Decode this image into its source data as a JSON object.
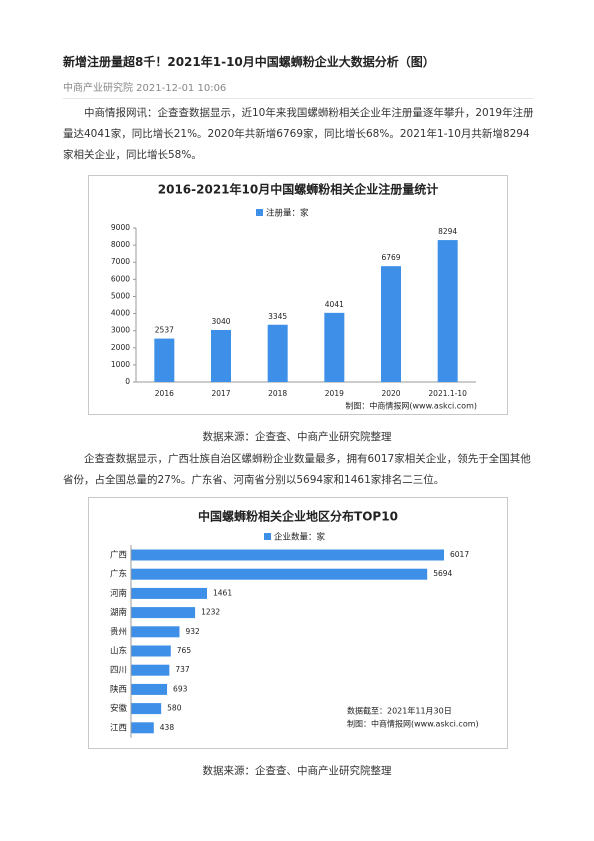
{
  "article": {
    "title": "新增注册量超8千！2021年1-10月中国螺蛳粉企业大数据分析（图）",
    "meta": "中商产业研究院 2021-12-01 10:06",
    "paragraphs": [
      "中商情报网讯：企查查数据显示，近10年来我国螺蛳粉相关企业年注册量逐年攀升，2019年注册量达4041家，同比增长21%。2020年共新增6769家，同比增长68%。2021年1-10月共新增8294家相关企业，同比增长58%。",
      "企查查数据显示，广西壮族自治区螺蛳粉企业数量最多，拥有6017家相关企业，领先于全国其他省份，占全国总量的27%。广东省、河南省分别以5694家和1461家排名二三位。"
    ],
    "captions": [
      "数据来源：企查查、中商产业研究院整理",
      "数据来源：企查查、中商产业研究院整理"
    ]
  },
  "chart_data": [
    {
      "type": "bar",
      "title": "2016-2021年10月中国螺蛳粉相关企业注册量统计",
      "categories": [
        "2016",
        "2017",
        "2018",
        "2019",
        "2020",
        "2021.1-10"
      ],
      "series": [
        {
          "name": "注册量：家",
          "color": "#3d8fe8",
          "values": [
            2537,
            3040,
            3345,
            4041,
            6769,
            8294
          ]
        }
      ],
      "ylim": [
        0,
        9000
      ],
      "yticks": [
        0,
        1000,
        2000,
        3000,
        4000,
        5000,
        6000,
        7000,
        8000,
        9000
      ],
      "notes": [
        "制图：中商情报网(www.askci.com)"
      ]
    },
    {
      "type": "barh",
      "title": "中国螺蛳粉相关企业地区分布TOP10",
      "categories": [
        "广西",
        "广东",
        "河南",
        "湖南",
        "贵州",
        "山东",
        "四川",
        "陕西",
        "安徽",
        "江西"
      ],
      "series": [
        {
          "name": "企业数量：家",
          "color": "#3d8fe8",
          "values": [
            6017,
            5694,
            1461,
            1232,
            932,
            765,
            737,
            693,
            580,
            438
          ]
        }
      ],
      "notes": [
        "数据截至：2021年11月30日",
        "制图：中商情报网(www.askci.com)"
      ]
    }
  ]
}
